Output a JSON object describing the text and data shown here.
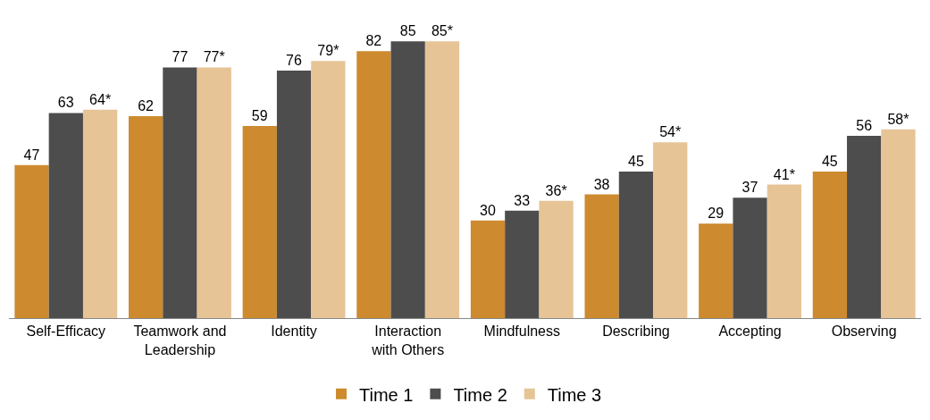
{
  "chart_data": {
    "type": "bar",
    "categories": [
      "Self-Efficacy",
      "Teamwork and Leadership",
      "Identity",
      "Interaction with Others",
      "Mindfulness",
      "Describing",
      "Accepting",
      "Observing"
    ],
    "series": [
      {
        "name": "Time 1",
        "color": "#cd8a2e",
        "values": [
          47,
          62,
          59,
          82,
          30,
          38,
          29,
          45
        ],
        "value_labels": [
          "47",
          "62",
          "59",
          "82",
          "30",
          "38",
          "29",
          "45"
        ]
      },
      {
        "name": "Time 2",
        "color": "#4d4d4d",
        "values": [
          63,
          77,
          76,
          85,
          33,
          45,
          37,
          56
        ],
        "value_labels": [
          "63",
          "77",
          "76",
          "85",
          "33",
          "45",
          "37",
          "56"
        ]
      },
      {
        "name": "Time 3",
        "color": "#e6c496",
        "values": [
          64,
          77,
          79,
          85,
          36,
          54,
          41,
          58
        ],
        "value_labels": [
          "64*",
          "77*",
          "79*",
          "85*",
          "36*",
          "54*",
          "41*",
          "58*"
        ]
      }
    ],
    "legend": "bottom",
    "tick_labels": "x"
  }
}
